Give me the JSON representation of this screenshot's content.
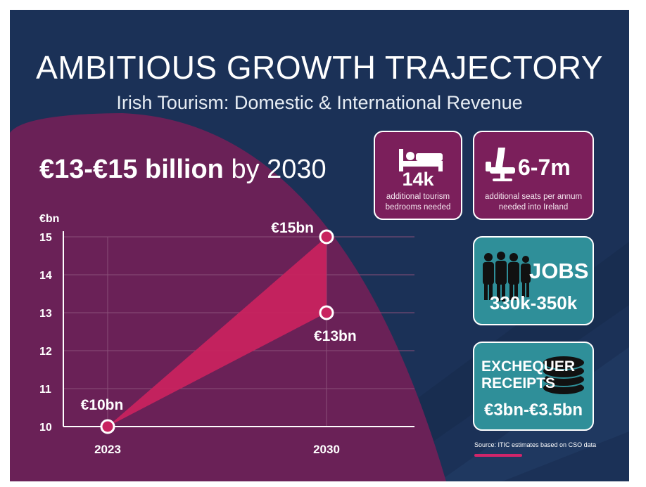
{
  "title": "AMBITIOUS GROWTH TRAJECTORY",
  "subtitle": "Irish Tourism: Domestic & International Revenue",
  "headline": {
    "bold": "€13-€15 billion",
    "rest": " by 2030"
  },
  "cards": {
    "bedrooms": {
      "value": "14k",
      "caption_line1": "additional tourism",
      "caption_line2": "bedrooms needed",
      "icon": "bed-icon"
    },
    "seats": {
      "value": "6-7m",
      "caption_line1": "additional seats per annum",
      "caption_line2": "needed into Ireland",
      "icon": "airplane-seat-icon"
    },
    "jobs": {
      "label": "JOBS",
      "value": "330k-350k",
      "icon": "people-silhouettes-icon"
    },
    "exchequer": {
      "label_line1": "EXCHEQUER",
      "label_line2": "RECEIPTS",
      "value": "€3bn-€3.5bn",
      "icon": "coin-stack-icon"
    }
  },
  "source": "Source: ITIC estimates based on CSO data",
  "colors": {
    "navy_background": "#1b3157",
    "purple_panel": "#6a2157",
    "magenta_fill": "#c8235f",
    "card_magenta": "#7b1f5b",
    "card_teal": "#2f8f99",
    "accent_bar": "#d0256a"
  },
  "chart_data": {
    "type": "area",
    "unit_label": "€bn",
    "x": [
      "2023",
      "2030"
    ],
    "series": [
      {
        "values": [
          10,
          15
        ],
        "point_label": "€15bn"
      },
      {
        "values": [
          10,
          13
        ],
        "point_label": "€13bn"
      }
    ],
    "start_label": "€10bn",
    "ylim": [
      10,
      15
    ],
    "yticks": [
      10,
      11,
      12,
      13,
      14,
      15
    ],
    "grid": true
  }
}
